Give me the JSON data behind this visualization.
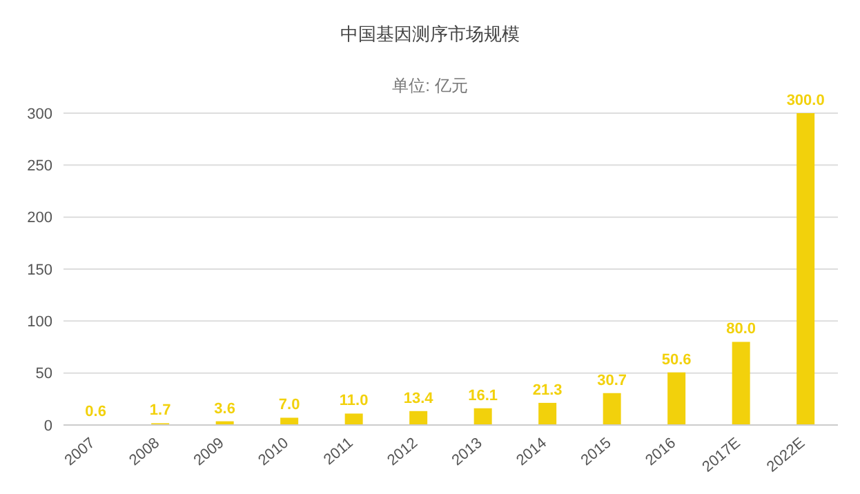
{
  "chart_data": {
    "type": "bar",
    "title": "中国基因测序市场规模",
    "subtitle": "单位: 亿元",
    "categories": [
      "2007",
      "2008",
      "2009",
      "2010",
      "2011",
      "2012",
      "2013",
      "2014",
      "2015",
      "2016",
      "2017E",
      "2022E"
    ],
    "values": [
      0.6,
      1.7,
      3.6,
      7.0,
      11.0,
      13.4,
      16.1,
      21.3,
      30.7,
      50.6,
      80.0,
      300.0
    ],
    "value_labels": [
      "0.6",
      "1.7",
      "3.6",
      "7.0",
      "11.0",
      "13.4",
      "16.1",
      "21.3",
      "30.7",
      "50.6",
      "80.0",
      "300.0"
    ],
    "color": "#f2d10c",
    "ylim": [
      0,
      300
    ],
    "yticks": [
      0,
      50,
      100,
      150,
      200,
      250,
      300
    ],
    "grid": "y",
    "legend": false
  }
}
